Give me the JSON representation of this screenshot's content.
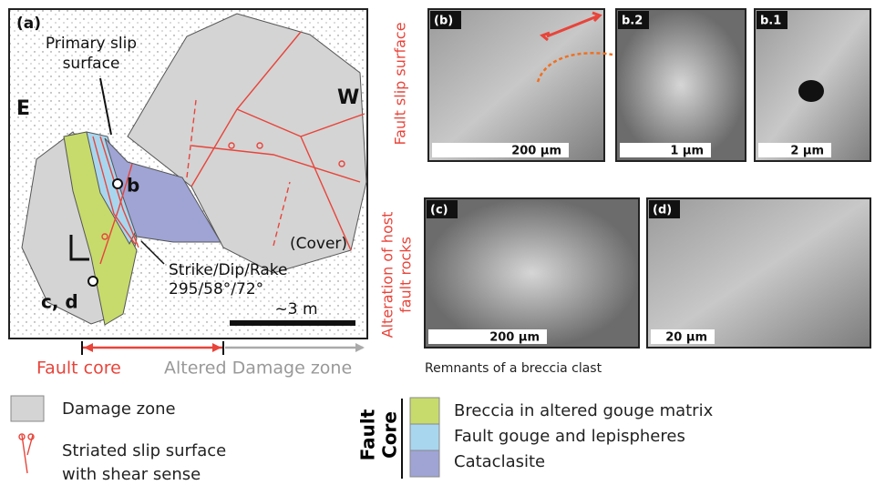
{
  "map": {
    "label": "(a)",
    "east": "E",
    "west": "W",
    "primary_slip_surface": [
      "Primary slip",
      "surface"
    ],
    "point_b": "b",
    "point_cd": "c, d",
    "cover": "(Cover)",
    "orientation": [
      "Strike/Dip/Rake",
      "295/58°/72°"
    ],
    "scale": "~3 m"
  },
  "zones": {
    "fault_core": "Fault core",
    "altered_damage_zone": "Altered Damage zone"
  },
  "row_labels": {
    "fault_slip_surface": "Fault slip surface",
    "alteration": [
      "Alteration of host",
      "fault rocks"
    ]
  },
  "sem_panels": [
    {
      "label": "(b)",
      "scale": "200 µm"
    },
    {
      "label": "b.2",
      "scale": "1 µm"
    },
    {
      "label": "b.1",
      "scale": "2 µm"
    },
    {
      "label": "(c)",
      "scale": "200 µm"
    },
    {
      "label": "(d)",
      "scale": "20 µm"
    }
  ],
  "caption": "Remnants of a breccia clast",
  "legend": {
    "damage_zone": "Damage zone",
    "striated": [
      "Striated slip surface",
      "with shear sense"
    ],
    "fault_core": [
      "Fault",
      "Core"
    ],
    "breccia": "Breccia in altered gouge matrix",
    "gouge": "Fault gouge and lepispheres",
    "cataclasite": "Cataclasite"
  }
}
